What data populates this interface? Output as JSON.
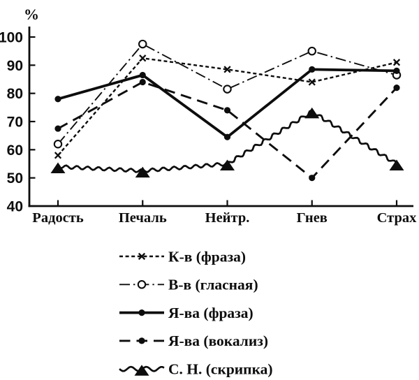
{
  "chart_data": {
    "type": "line",
    "title": "",
    "xlabel": "",
    "ylabel": "%",
    "categories": [
      "Радость",
      "Печаль",
      "Нейтр.",
      "Гнев",
      "Страх"
    ],
    "yticks": [
      40,
      50,
      60,
      70,
      80,
      90,
      100
    ],
    "ylim": [
      40,
      103
    ],
    "grid": false,
    "legend_position": "bottom",
    "colors": {
      "ink": "#0d0d0d",
      "background": "#ffffff"
    },
    "series": [
      {
        "name": "К-в (фраза)",
        "marker": "x",
        "line": "dashed",
        "values": [
          58,
          92.5,
          88.5,
          84,
          91
        ]
      },
      {
        "name": "В-в (гласная)",
        "marker": "open-circle",
        "line": "dash-dot",
        "values": [
          62,
          97.5,
          81.5,
          95,
          86.5
        ]
      },
      {
        "name": "Я-ва (фраза)",
        "marker": "filled-circle",
        "line": "solid-thick",
        "values": [
          78,
          86.5,
          64.5,
          88.5,
          88
        ]
      },
      {
        "name": "Я-ва (вокализ)",
        "marker": "filled-circle",
        "line": "long-dash",
        "values": [
          67.5,
          84,
          74,
          50,
          82
        ]
      },
      {
        "name": "С. Н. (скрипка)",
        "marker": "filled-triangle",
        "line": "wavy",
        "values": [
          54,
          52.5,
          55,
          73.5,
          55
        ]
      }
    ]
  }
}
